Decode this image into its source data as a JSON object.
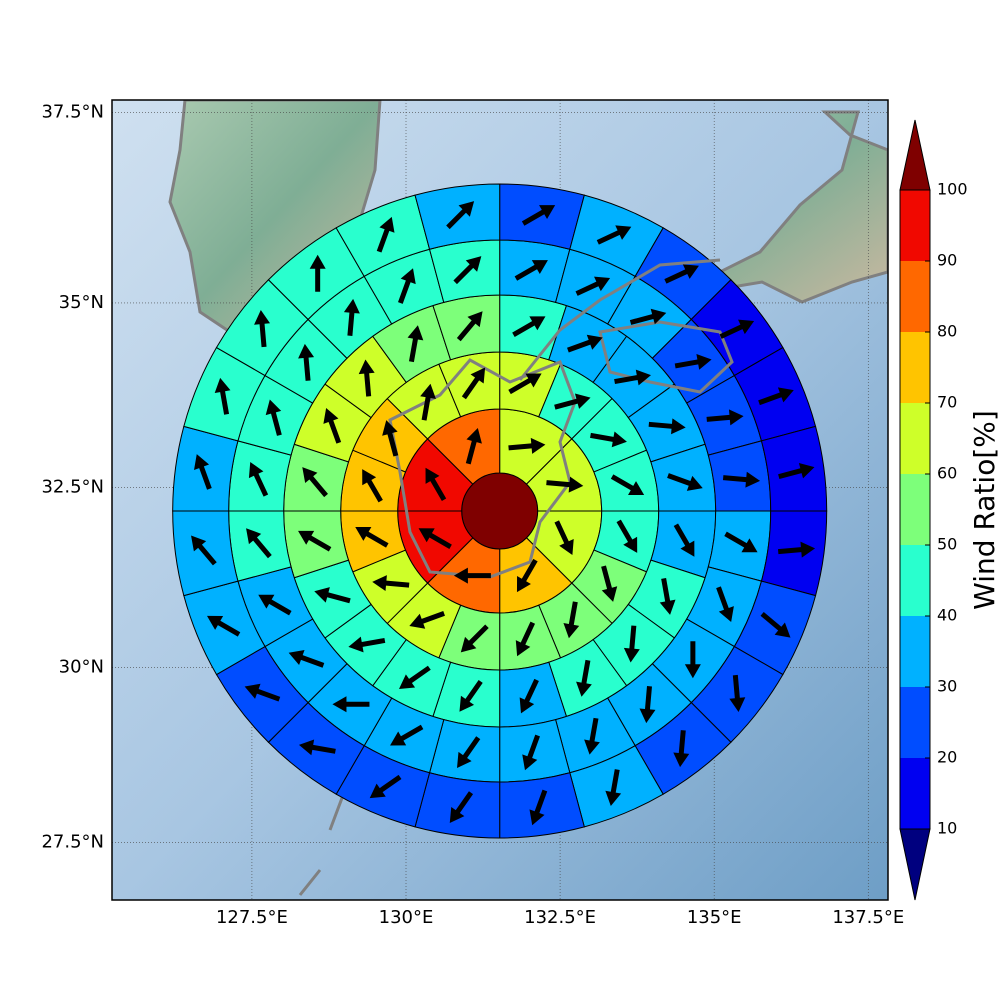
{
  "chart_data": {
    "type": "polar_sectors",
    "projection": "mercator",
    "xlim": [
      125.23,
      137.82
    ],
    "ylim": [
      26.67,
      37.66
    ],
    "xticks": [
      {
        "value": 127.5,
        "label": "127.5°E"
      },
      {
        "value": 130,
        "label": "130°E"
      },
      {
        "value": 132.5,
        "label": "132.5°E"
      },
      {
        "value": 135,
        "label": "135°E"
      },
      {
        "value": 137.5,
        "label": "137.5°E"
      }
    ],
    "yticks": [
      {
        "value": 27.5,
        "label": "27.5°N"
      },
      {
        "value": 30,
        "label": "30°N"
      },
      {
        "value": 32.5,
        "label": "32.5°N"
      },
      {
        "value": 35,
        "label": "35°N"
      },
      {
        "value": 37.5,
        "label": "37.5°N"
      }
    ],
    "grid": true,
    "center": {
      "lon": 131.52,
      "lat": 32.18
    },
    "center_value": 100,
    "rings": [
      {
        "values": [
          65,
          65,
          65,
          75,
          85,
          95,
          95,
          85
        ],
        "directions": [
          85,
          95,
          155,
          210,
          270,
          300,
          330,
          15
        ]
      },
      {
        "values": [
          65,
          45,
          45,
          45,
          45,
          55,
          55,
          55,
          55,
          65,
          65,
          75,
          75,
          75,
          65,
          65
        ],
        "directions": [
          60,
          75,
          100,
          120,
          150,
          165,
          190,
          205,
          225,
          250,
          275,
          300,
          330,
          345,
          10,
          35
        ]
      },
      {
        "values": [
          45,
          35,
          35,
          35,
          35,
          35,
          45,
          45,
          45,
          35,
          45,
          45,
          45,
          45,
          55,
          55,
          65,
          65,
          55,
          55
        ],
        "directions": [
          60,
          70,
          80,
          95,
          110,
          150,
          170,
          185,
          190,
          205,
          215,
          235,
          260,
          285,
          300,
          320,
          340,
          355,
          10,
          40
        ]
      },
      {
        "values": [
          35,
          35,
          35,
          25,
          25,
          25,
          35,
          35,
          35,
          35,
          35,
          35,
          35,
          35,
          35,
          35,
          35,
          45,
          45,
          45,
          45,
          45,
          45,
          45
        ],
        "directions": [
          60,
          65,
          75,
          80,
          85,
          95,
          120,
          160,
          180,
          185,
          190,
          200,
          215,
          240,
          270,
          290,
          300,
          320,
          335,
          345,
          355,
          5,
          20,
          45
        ]
      },
      {
        "values": [
          25,
          35,
          25,
          15,
          15,
          15,
          15,
          25,
          25,
          25,
          35,
          25,
          25,
          25,
          25,
          25,
          35,
          35,
          35,
          45,
          45,
          45,
          45,
          35
        ],
        "directions": [
          60,
          65,
          65,
          65,
          70,
          75,
          85,
          130,
          175,
          185,
          190,
          200,
          215,
          235,
          280,
          290,
          300,
          320,
          340,
          350,
          355,
          0,
          20,
          45
        ]
      }
    ],
    "colorbar": {
      "label": "Wind Ratio[%]",
      "boundaries": [
        10,
        20,
        30,
        40,
        50,
        60,
        70,
        80,
        90,
        100
      ],
      "colors": [
        "#0000f1",
        "#004dff",
        "#00b1ff",
        "#29ffce",
        "#7dff7a",
        "#ceff29",
        "#ffc400",
        "#ff6800",
        "#f10800"
      ],
      "under": "#00007f",
      "over": "#7f0000",
      "ticks": [
        10,
        20,
        30,
        40,
        50,
        60,
        70,
        80,
        90,
        100
      ]
    }
  }
}
